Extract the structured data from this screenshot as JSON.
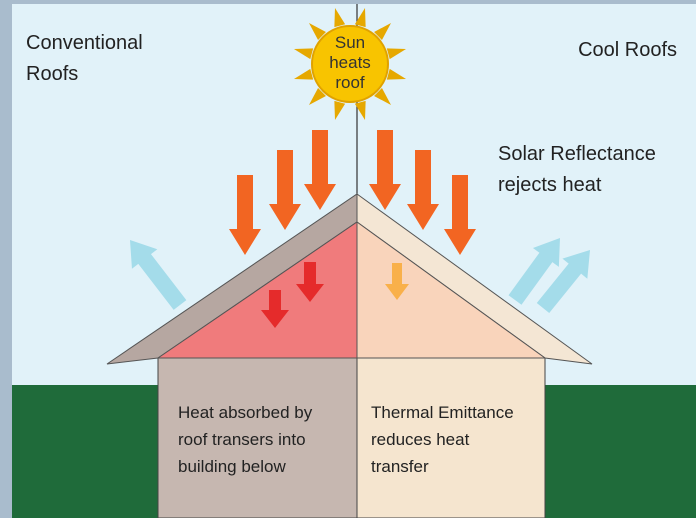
{
  "left_heading": [
    "Conventional",
    "Roofs"
  ],
  "right_heading": "Cool Roofs",
  "sun_label": [
    "Sun",
    "heats",
    "roof"
  ],
  "reflectance_note": [
    "Solar Reflectance",
    "rejects heat"
  ],
  "left_wall_note": [
    "Heat absorbed by",
    "roof transers into",
    "building below"
  ],
  "right_wall_note": [
    "Thermal Emittance",
    "reduces heat",
    "transfer"
  ]
}
